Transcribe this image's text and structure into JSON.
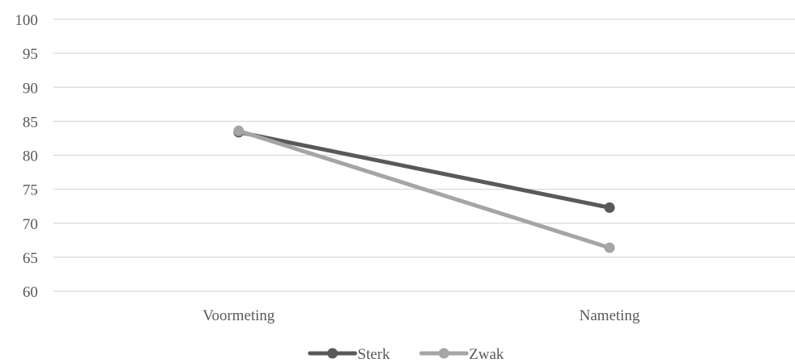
{
  "chart_data": {
    "type": "line",
    "title": "",
    "xlabel": "",
    "ylabel": "",
    "categories": [
      "Voormeting",
      "Nameting"
    ],
    "ylim": [
      60,
      100
    ],
    "yticks": [
      60,
      65,
      70,
      75,
      80,
      85,
      90,
      95,
      100
    ],
    "grid": true,
    "legend_position": "bottom",
    "series": [
      {
        "name": "Sterk",
        "values": [
          83.4,
          72.3
        ],
        "color": "#595959"
      },
      {
        "name": "Zwak",
        "values": [
          83.6,
          66.4
        ],
        "color": "#A5A5A5"
      }
    ],
    "gridline_color": "#D9D9D9",
    "text_color": "#595959"
  }
}
